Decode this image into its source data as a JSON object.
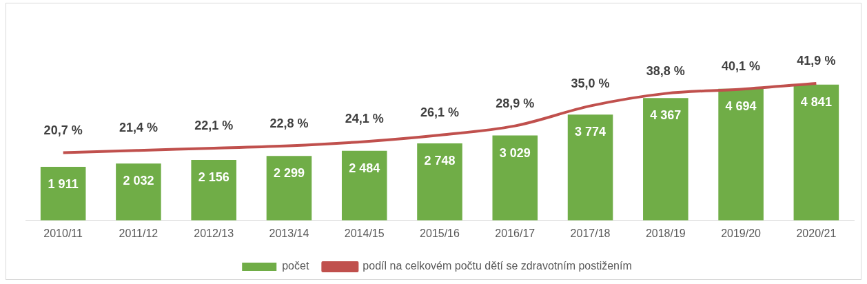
{
  "chart_data": {
    "type": "bar",
    "categories": [
      "2010/11",
      "2011/12",
      "2012/13",
      "2013/14",
      "2014/15",
      "2015/16",
      "2016/17",
      "2017/18",
      "2018/19",
      "2019/20",
      "2020/21"
    ],
    "series": [
      {
        "name": "počet",
        "color": "#70ad47",
        "values": [
          1911,
          2032,
          2156,
          2299,
          2484,
          2748,
          3029,
          3774,
          4367,
          4694,
          4841
        ],
        "value_labels": [
          "1 911",
          "2 032",
          "2 156",
          "2 299",
          "2 484",
          "2 748",
          "3 029",
          "3 774",
          "4 367",
          "4 694",
          "4 841"
        ]
      },
      {
        "name": "podíl na celkovém počtu dětí se zdravotním postižením",
        "type": "line",
        "axis": "y2",
        "color": "#c0504d",
        "values": [
          20.7,
          21.4,
          22.1,
          22.8,
          24.1,
          26.1,
          28.9,
          35.0,
          38.8,
          40.1,
          41.9
        ],
        "value_labels": [
          "20,7 %",
          "21,4 %",
          "22,1 %",
          "22,8 %",
          "24,1 %",
          "26,1 %",
          "28,9 %",
          "35,0 %",
          "38,8 %",
          "40,1 %",
          "41,9 %"
        ]
      }
    ],
    "relative": false,
    "legend": "bottom",
    "grid": false,
    "marker": "none",
    "line_style": "solid",
    "tick_labels": "x"
  }
}
